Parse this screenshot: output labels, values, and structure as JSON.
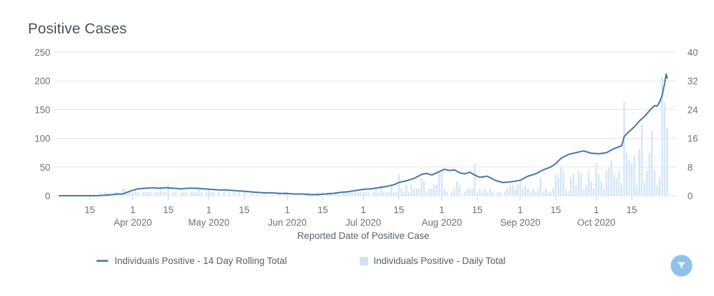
{
  "title": "Positive Cases",
  "colors": {
    "line": "#4075ad",
    "bar": "#d3e5f8",
    "grid": "#e3e3e3",
    "tick_text": "#6c7176",
    "axis_title_text": "#595f66",
    "title_text": "#4a5056",
    "legend_text": "#585e66",
    "legend_line_marker": "#5f86ab",
    "legend_bar_marker": "#cfe2f6",
    "fab_bg": "#8ec2ec",
    "fab_icon": "#ffffff"
  },
  "legend": [
    {
      "label": "Individuals Positive - 14 Day Rolling Total",
      "marker": "line-dash-icon"
    },
    {
      "label": "Individuals Positive - Daily Total",
      "marker": "square-swatch-icon"
    }
  ],
  "filter_button": {
    "icon": "filter-funnel-icon"
  },
  "chart_data": {
    "type": "line+bar",
    "title": "Positive Cases",
    "xlabel": "Reported Date of Positive Case",
    "x_start_date": "2020-03-03",
    "x_end_date": "2020-10-29",
    "x_days": 241,
    "left_axis": {
      "max": 250,
      "ticks": [
        250,
        200,
        150,
        100,
        50,
        0
      ]
    },
    "right_axis": {
      "max": 40,
      "ticks": [
        40,
        32,
        24,
        16,
        8,
        0
      ]
    },
    "x_ticks": [
      {
        "d": 12,
        "label": "15",
        "month": ""
      },
      {
        "d": 29,
        "label": "1",
        "month": "Apr 2020"
      },
      {
        "d": 43,
        "label": "15",
        "month": ""
      },
      {
        "d": 59,
        "label": "1",
        "month": "May 2020"
      },
      {
        "d": 73,
        "label": "15",
        "month": ""
      },
      {
        "d": 90,
        "label": "1",
        "month": "Jun 2020"
      },
      {
        "d": 104,
        "label": "15",
        "month": ""
      },
      {
        "d": 120,
        "label": "1",
        "month": "Jul 2020"
      },
      {
        "d": 134,
        "label": "15",
        "month": ""
      },
      {
        "d": 151,
        "label": "1",
        "month": "Aug 2020"
      },
      {
        "d": 165,
        "label": "15",
        "month": ""
      },
      {
        "d": 182,
        "label": "1",
        "month": "Sep 2020"
      },
      {
        "d": 196,
        "label": "15",
        "month": ""
      },
      {
        "d": 212,
        "label": "1",
        "month": "Oct 2020"
      },
      {
        "d": 226,
        "label": "15",
        "month": ""
      }
    ],
    "series": [
      {
        "name": "Individuals Positive - 14 Day Rolling Total",
        "type": "line",
        "axis": "left",
        "keypoints": [
          [
            0,
            0
          ],
          [
            15,
            0
          ],
          [
            18,
            1
          ],
          [
            21,
            2
          ],
          [
            23,
            3
          ],
          [
            25,
            3
          ],
          [
            28,
            8
          ],
          [
            31,
            12
          ],
          [
            34,
            13
          ],
          [
            37,
            14
          ],
          [
            39,
            13
          ],
          [
            42,
            14
          ],
          [
            45,
            13
          ],
          [
            48,
            12
          ],
          [
            51,
            13
          ],
          [
            54,
            13
          ],
          [
            57,
            12
          ],
          [
            60,
            11
          ],
          [
            63,
            10
          ],
          [
            66,
            10
          ],
          [
            69,
            9
          ],
          [
            72,
            8
          ],
          [
            75,
            7
          ],
          [
            78,
            6
          ],
          [
            81,
            5
          ],
          [
            84,
            5
          ],
          [
            87,
            4
          ],
          [
            90,
            4
          ],
          [
            93,
            3
          ],
          [
            96,
            3
          ],
          [
            99,
            2
          ],
          [
            102,
            2
          ],
          [
            105,
            3
          ],
          [
            108,
            4
          ],
          [
            111,
            6
          ],
          [
            114,
            7
          ],
          [
            117,
            9
          ],
          [
            120,
            11
          ],
          [
            123,
            12
          ],
          [
            126,
            14
          ],
          [
            129,
            16
          ],
          [
            132,
            19
          ],
          [
            134,
            23
          ],
          [
            137,
            26
          ],
          [
            140,
            30
          ],
          [
            143,
            37
          ],
          [
            145,
            39
          ],
          [
            147,
            36
          ],
          [
            150,
            42
          ],
          [
            152,
            46
          ],
          [
            154,
            44
          ],
          [
            156,
            45
          ],
          [
            158,
            40
          ],
          [
            160,
            38
          ],
          [
            162,
            41
          ],
          [
            164,
            36
          ],
          [
            166,
            32
          ],
          [
            169,
            34
          ],
          [
            172,
            27
          ],
          [
            175,
            23
          ],
          [
            178,
            24
          ],
          [
            182,
            27
          ],
          [
            185,
            34
          ],
          [
            188,
            38
          ],
          [
            191,
            45
          ],
          [
            194,
            50
          ],
          [
            196,
            56
          ],
          [
            198,
            65
          ],
          [
            201,
            72
          ],
          [
            204,
            75
          ],
          [
            207,
            78
          ],
          [
            210,
            74
          ],
          [
            213,
            73
          ],
          [
            216,
            75
          ],
          [
            219,
            82
          ],
          [
            222,
            87
          ],
          [
            223,
            103
          ],
          [
            225,
            112
          ],
          [
            227,
            120
          ],
          [
            229,
            130
          ],
          [
            231,
            138
          ],
          [
            233,
            148
          ],
          [
            235,
            157
          ],
          [
            236,
            156
          ],
          [
            237,
            163
          ],
          [
            238,
            175
          ],
          [
            239,
            196
          ],
          [
            239.6,
            212
          ],
          [
            240,
            205
          ]
        ]
      },
      {
        "name": "Individuals Positive - Daily Total",
        "type": "bar",
        "axis": "right",
        "values": [
          0,
          0,
          0,
          0,
          0,
          0,
          0,
          0,
          0,
          0,
          0,
          0,
          0,
          0,
          0,
          0,
          1,
          0,
          1,
          1,
          0,
          0,
          1,
          1,
          0,
          2,
          2,
          1,
          1,
          1,
          2,
          1,
          0,
          1,
          1,
          1,
          1,
          0,
          1,
          1,
          2,
          1,
          1,
          3,
          0,
          1,
          1,
          0,
          1,
          1,
          1,
          0,
          1,
          1,
          1,
          2,
          1,
          0,
          1,
          2,
          1,
          1,
          0,
          1,
          0,
          1,
          0,
          1,
          0,
          1,
          0,
          1,
          0,
          1,
          0,
          0,
          1,
          0,
          1,
          0,
          0,
          1,
          0,
          0,
          0,
          0,
          0,
          1,
          0,
          1,
          1,
          0,
          0,
          0,
          0,
          0,
          0,
          0,
          1,
          0,
          0,
          0,
          1,
          0,
          1,
          0,
          1,
          1,
          0,
          1,
          1,
          0,
          1,
          1,
          1,
          1,
          1,
          1,
          1,
          1,
          1,
          1,
          1,
          0,
          1,
          2,
          1,
          3,
          1,
          1,
          1,
          3,
          1,
          1,
          6,
          2,
          1,
          3,
          1,
          3,
          2,
          2,
          2,
          5,
          4,
          1,
          2,
          2,
          3,
          3,
          7,
          7,
          2,
          1,
          0,
          1,
          2,
          4,
          3,
          0,
          1,
          2,
          2,
          2,
          9,
          1,
          2,
          1,
          2,
          1,
          2,
          1,
          0,
          1,
          1,
          0,
          1,
          2,
          3,
          3,
          2,
          3,
          4,
          2,
          3,
          2,
          1,
          2,
          1,
          2,
          5,
          1,
          2,
          1,
          1,
          2,
          6,
          5,
          8,
          7,
          2,
          1,
          5,
          6,
          3,
          7,
          6,
          2,
          3,
          7,
          4,
          2,
          9,
          6,
          4,
          2,
          7,
          8,
          10,
          6,
          5,
          7,
          3,
          26,
          12,
          10,
          9,
          11,
          3,
          13,
          20,
          4,
          7,
          12,
          18,
          7,
          3,
          5,
          33,
          26,
          19
        ]
      }
    ],
    "grid": true,
    "legend_position": "bottom"
  }
}
